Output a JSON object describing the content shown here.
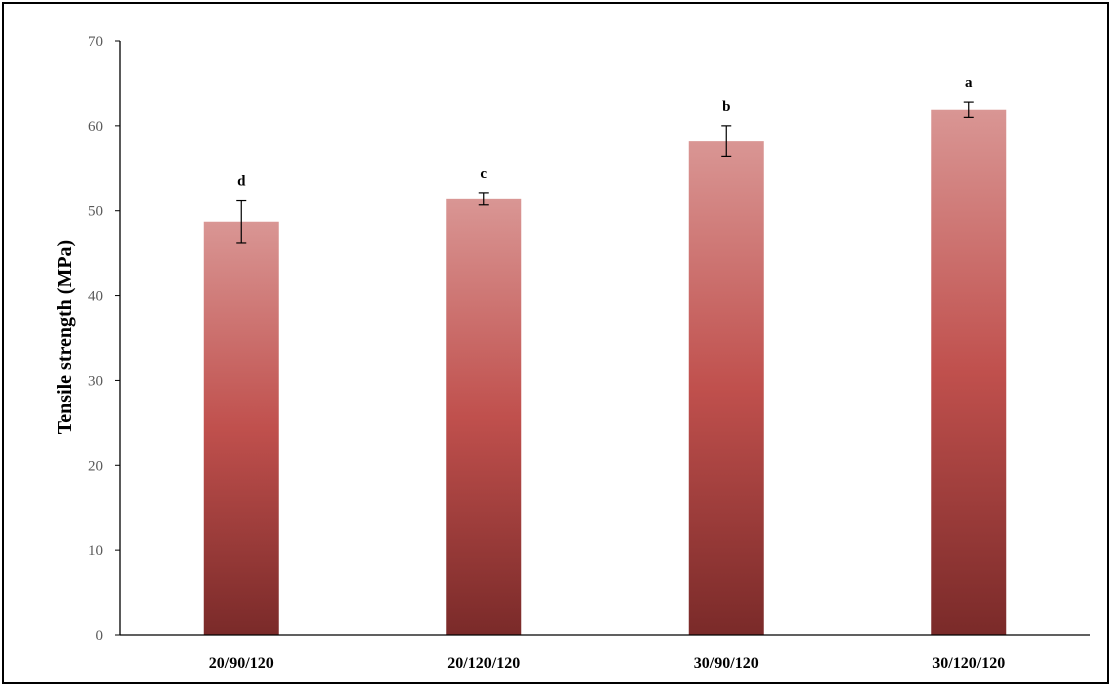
{
  "chart_data": {
    "type": "bar",
    "title": "",
    "xlabel": "",
    "ylabel": "Tensile strength (MPa)",
    "ylim": [
      0,
      70
    ],
    "yticks": [
      0,
      10,
      20,
      30,
      40,
      50,
      60,
      70
    ],
    "grid": false,
    "legend": "none",
    "categories": [
      "20/90/120",
      "20/120/120",
      "30/90/120",
      "30/120/120"
    ],
    "values": [
      48.7,
      51.4,
      58.2,
      61.9
    ],
    "errors": [
      2.5,
      0.7,
      1.8,
      0.9
    ],
    "significance_labels": [
      "d",
      "c",
      "b",
      "a"
    ],
    "bar_color_top": "#d99694",
    "bar_color_mid": "#c0504d",
    "bar_color_bottom": "#7a2a29"
  }
}
